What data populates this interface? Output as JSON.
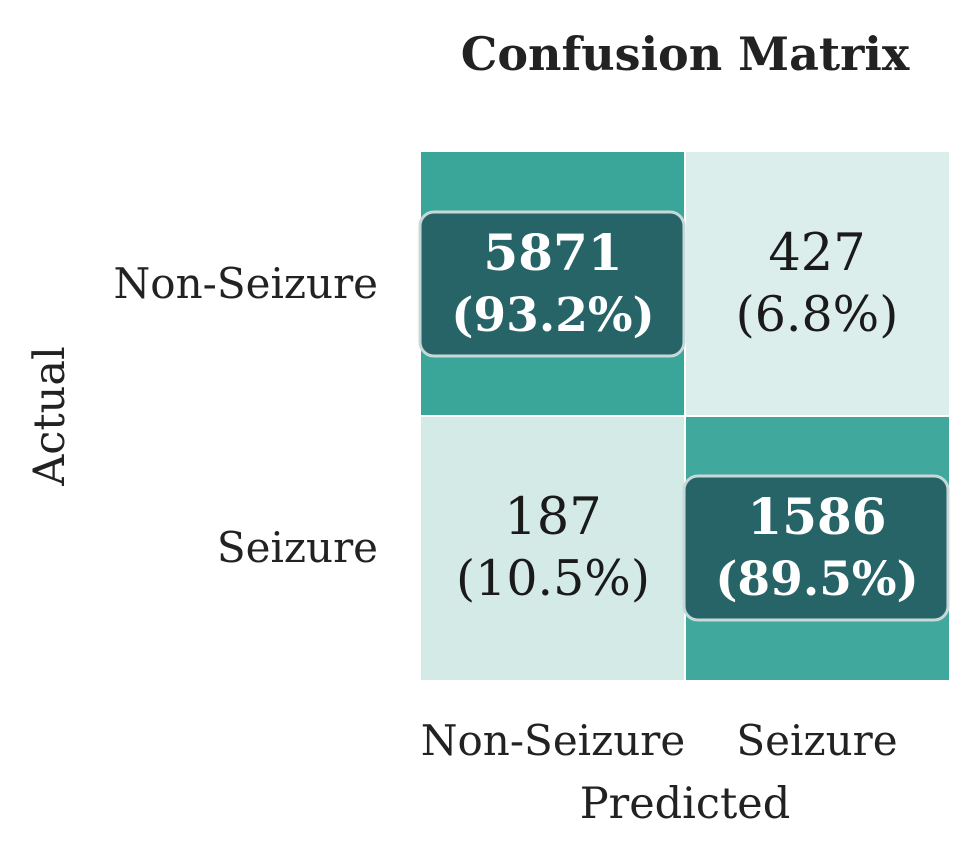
{
  "chart_data": {
    "type": "heatmap",
    "title": "Confusion Matrix",
    "xlabel": "Predicted",
    "ylabel": "Actual",
    "x_categories": [
      "Non-Seizure",
      "Seizure"
    ],
    "y_categories": [
      "Non-Seizure",
      "Seizure"
    ],
    "values": [
      [
        5871,
        427
      ],
      [
        187,
        1586
      ]
    ],
    "row_percentages": [
      [
        93.2,
        6.8
      ],
      [
        10.5,
        89.5
      ]
    ],
    "cell_labels": [
      [
        {
          "count": "5871",
          "percent": "(93.2%)"
        },
        {
          "count": "427",
          "percent": "(6.8%)"
        }
      ],
      [
        {
          "count": "187",
          "percent": "(10.5%)"
        },
        {
          "count": "1586",
          "percent": "(89.5%)"
        }
      ]
    ],
    "diagonal_highlighted": true,
    "colorbar": false,
    "colors": {
      "cell_high": "#2ea093",
      "cell_low": "#e6f2f0",
      "highlight_box": "#255f63",
      "highlight_border": "#c8d8d8",
      "text_dark": "#1a1a1a",
      "text_light": "#ffffff",
      "title": "#222222",
      "axis_text": "#222222"
    }
  }
}
